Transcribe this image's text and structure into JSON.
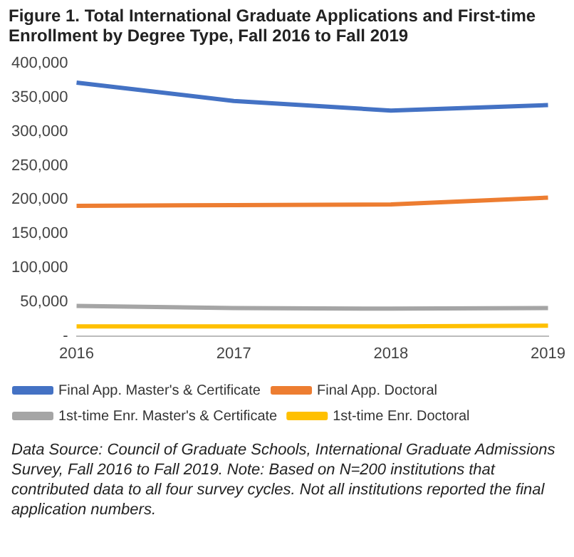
{
  "chart_data": {
    "type": "line",
    "title": "Figure 1. Total International Graduate Applications and First-time Enrollment by Degree Type, Fall 2016 to Fall 2019",
    "categories": [
      "2016",
      "2017",
      "2018",
      "2019"
    ],
    "series": [
      {
        "name": "Final App. Master's & Certificate",
        "color": "#4472c4",
        "values": [
          372000,
          345000,
          331000,
          339000
        ]
      },
      {
        "name": "Final App. Doctoral",
        "color": "#ed7d31",
        "values": [
          191000,
          192000,
          193000,
          203000
        ]
      },
      {
        "name": "1st-time Enr. Master's & Certificate",
        "color": "#a5a5a5",
        "values": [
          44000,
          41000,
          40000,
          41000
        ]
      },
      {
        "name": "1st-time Enr. Doctoral",
        "color": "#ffc000",
        "values": [
          14000,
          14000,
          14000,
          15000
        ]
      }
    ],
    "ylim": [
      0,
      400000
    ],
    "yticks": [
      {
        "value": 0,
        "label": "-"
      },
      {
        "value": 50000,
        "label": "50,000"
      },
      {
        "value": 100000,
        "label": "100,000"
      },
      {
        "value": 150000,
        "label": "150,000"
      },
      {
        "value": 200000,
        "label": "200,000"
      },
      {
        "value": 250000,
        "label": "250,000"
      },
      {
        "value": 300000,
        "label": "300,000"
      },
      {
        "value": 350000,
        "label": "350,000"
      },
      {
        "value": 400000,
        "label": "400,000"
      }
    ],
    "grid": false,
    "legend": "bottom",
    "marker": "none",
    "line_style": "solid",
    "annotations": [
      "Data Source: Council of Graduate Schools, International Graduate Admissions Survey, Fall 2016 to Fall 2019. Note: Based on N=200 institutions that contributed data to all four survey cycles. Not all institutions reported the final application numbers."
    ]
  }
}
